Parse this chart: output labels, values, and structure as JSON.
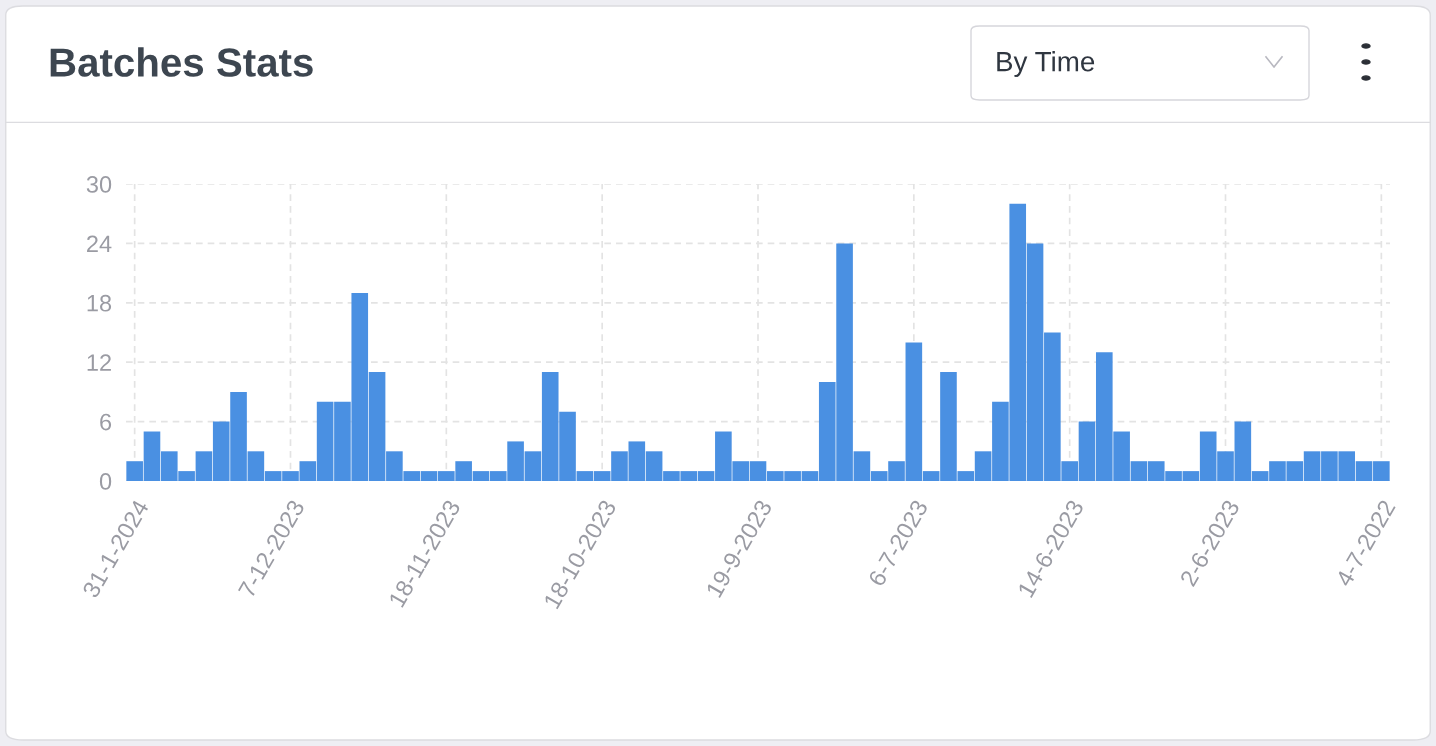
{
  "chart_data": {
    "type": "bar",
    "title": "Batches Stats",
    "annotations": [
      "By Time"
    ],
    "categories": [
      "31-1-2024",
      null,
      null,
      null,
      null,
      null,
      null,
      null,
      null,
      "7-12-2023",
      null,
      null,
      null,
      null,
      null,
      null,
      null,
      null,
      "18-11-2023",
      null,
      null,
      null,
      null,
      null,
      null,
      null,
      null,
      "18-10-2023",
      null,
      null,
      null,
      null,
      null,
      null,
      null,
      null,
      "19-9-2023",
      null,
      null,
      null,
      null,
      null,
      null,
      null,
      null,
      "6-7-2023",
      null,
      null,
      null,
      null,
      null,
      null,
      null,
      null,
      "14-6-2023",
      null,
      null,
      null,
      null,
      null,
      null,
      null,
      null,
      "2-6-2023",
      null,
      null,
      null,
      null,
      null,
      null,
      null,
      null,
      "4-7-2022"
    ],
    "values": [
      2,
      5,
      3,
      1,
      3,
      6,
      9,
      3,
      1,
      1,
      2,
      8,
      8,
      19,
      11,
      3,
      1,
      1,
      1,
      2,
      1,
      1,
      4,
      3,
      11,
      7,
      1,
      1,
      3,
      4,
      3,
      1,
      1,
      1,
      5,
      2,
      2,
      1,
      1,
      1,
      10,
      24,
      3,
      1,
      2,
      14,
      1,
      11,
      1,
      3,
      8,
      28,
      24,
      15,
      2,
      6,
      13,
      5,
      2,
      2,
      1,
      1,
      5,
      3,
      6,
      1,
      2,
      2,
      3,
      3,
      3,
      2,
      2
    ],
    "color": "#4a90e2",
    "ylim": [
      0,
      30
    ],
    "yticks": [
      0,
      6,
      12,
      18,
      24,
      30
    ],
    "grid": true
  }
}
